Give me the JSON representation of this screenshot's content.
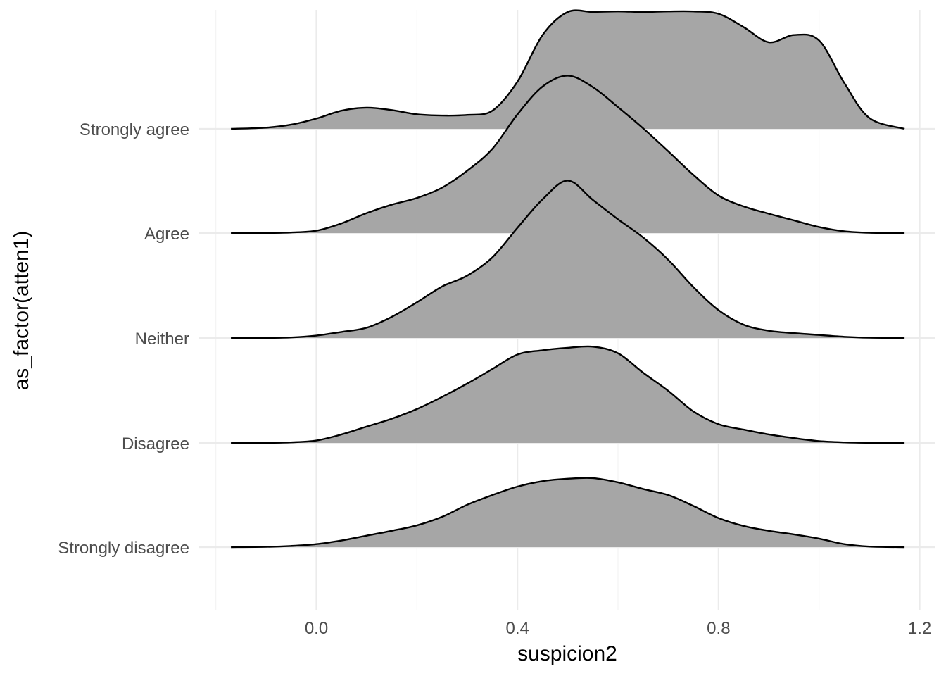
{
  "chart_data": {
    "type": "ridgeline",
    "xlabel": "suspicion2",
    "ylabel": "as_factor(atten1)",
    "xlim": [
      -0.22,
      1.23
    ],
    "x_ticks": [
      "0.0",
      "0.4",
      "0.8",
      "1.2"
    ],
    "x_tick_values": [
      0.0,
      0.4,
      0.8,
      1.2
    ],
    "x_minor_values": [
      -0.2,
      0.2,
      0.6,
      1.0
    ],
    "grid": true,
    "fill_color": "#a6a6a6",
    "line_color": "#000000",
    "categories": [
      "Strongly disagree",
      "Disagree",
      "Neither",
      "Agree",
      "Strongly agree"
    ],
    "series": [
      {
        "category": "Strongly disagree",
        "x": [
          -0.17,
          -0.1,
          -0.05,
          0.0,
          0.05,
          0.1,
          0.15,
          0.2,
          0.25,
          0.3,
          0.35,
          0.4,
          0.45,
          0.5,
          0.55,
          0.6,
          0.65,
          0.7,
          0.75,
          0.8,
          0.85,
          0.9,
          0.95,
          1.0,
          1.05,
          1.1,
          1.17
        ],
        "y": [
          0.0,
          0.005,
          0.02,
          0.05,
          0.11,
          0.19,
          0.27,
          0.36,
          0.5,
          0.7,
          0.86,
          1.0,
          1.09,
          1.13,
          1.14,
          1.07,
          0.96,
          0.86,
          0.68,
          0.48,
          0.35,
          0.27,
          0.21,
          0.14,
          0.05,
          0.01,
          0.0
        ]
      },
      {
        "category": "Disagree",
        "x": [
          -0.17,
          -0.1,
          -0.05,
          0.0,
          0.05,
          0.1,
          0.15,
          0.2,
          0.25,
          0.3,
          0.35,
          0.4,
          0.45,
          0.5,
          0.55,
          0.6,
          0.65,
          0.7,
          0.75,
          0.8,
          0.85,
          0.9,
          0.95,
          1.0,
          1.05,
          1.1,
          1.17
        ],
        "y": [
          0.0,
          0.002,
          0.01,
          0.04,
          0.14,
          0.27,
          0.4,
          0.56,
          0.76,
          0.98,
          1.22,
          1.46,
          1.53,
          1.57,
          1.59,
          1.48,
          1.16,
          0.86,
          0.52,
          0.31,
          0.22,
          0.14,
          0.08,
          0.03,
          0.01,
          0.002,
          0.0
        ]
      },
      {
        "category": "Neither",
        "x": [
          -0.17,
          -0.1,
          -0.05,
          0.0,
          0.05,
          0.1,
          0.15,
          0.2,
          0.25,
          0.3,
          0.35,
          0.4,
          0.45,
          0.5,
          0.55,
          0.6,
          0.65,
          0.7,
          0.75,
          0.8,
          0.85,
          0.9,
          0.95,
          1.0,
          1.05,
          1.1,
          1.17
        ],
        "y": [
          0.0,
          0.002,
          0.01,
          0.04,
          0.1,
          0.17,
          0.35,
          0.59,
          0.85,
          1.03,
          1.33,
          1.82,
          2.29,
          2.6,
          2.28,
          1.96,
          1.66,
          1.29,
          0.84,
          0.46,
          0.22,
          0.12,
          0.08,
          0.05,
          0.02,
          0.005,
          0.0
        ]
      },
      {
        "category": "Agree",
        "x": [
          -0.17,
          -0.1,
          -0.05,
          0.0,
          0.05,
          0.1,
          0.15,
          0.2,
          0.25,
          0.3,
          0.35,
          0.4,
          0.45,
          0.5,
          0.55,
          0.6,
          0.65,
          0.7,
          0.75,
          0.8,
          0.85,
          0.9,
          0.95,
          1.0,
          1.05,
          1.1,
          1.17
        ],
        "y": [
          0.0,
          0.002,
          0.01,
          0.04,
          0.16,
          0.33,
          0.47,
          0.58,
          0.75,
          1.03,
          1.39,
          1.96,
          2.42,
          2.6,
          2.41,
          2.08,
          1.73,
          1.35,
          0.96,
          0.62,
          0.44,
          0.32,
          0.21,
          0.1,
          0.03,
          0.005,
          0.0
        ]
      },
      {
        "category": "Strongly agree",
        "x": [
          -0.17,
          -0.1,
          -0.05,
          0.0,
          0.05,
          0.1,
          0.15,
          0.2,
          0.25,
          0.3,
          0.35,
          0.4,
          0.45,
          0.5,
          0.55,
          0.6,
          0.65,
          0.7,
          0.75,
          0.8,
          0.85,
          0.9,
          0.95,
          1.0,
          1.05,
          1.1,
          1.17
        ],
        "y": [
          0.0,
          0.02,
          0.07,
          0.17,
          0.3,
          0.35,
          0.31,
          0.24,
          0.22,
          0.23,
          0.3,
          0.78,
          1.55,
          1.93,
          1.93,
          1.94,
          1.93,
          1.94,
          1.94,
          1.9,
          1.68,
          1.43,
          1.55,
          1.46,
          0.76,
          0.18,
          0.0
        ]
      }
    ]
  }
}
